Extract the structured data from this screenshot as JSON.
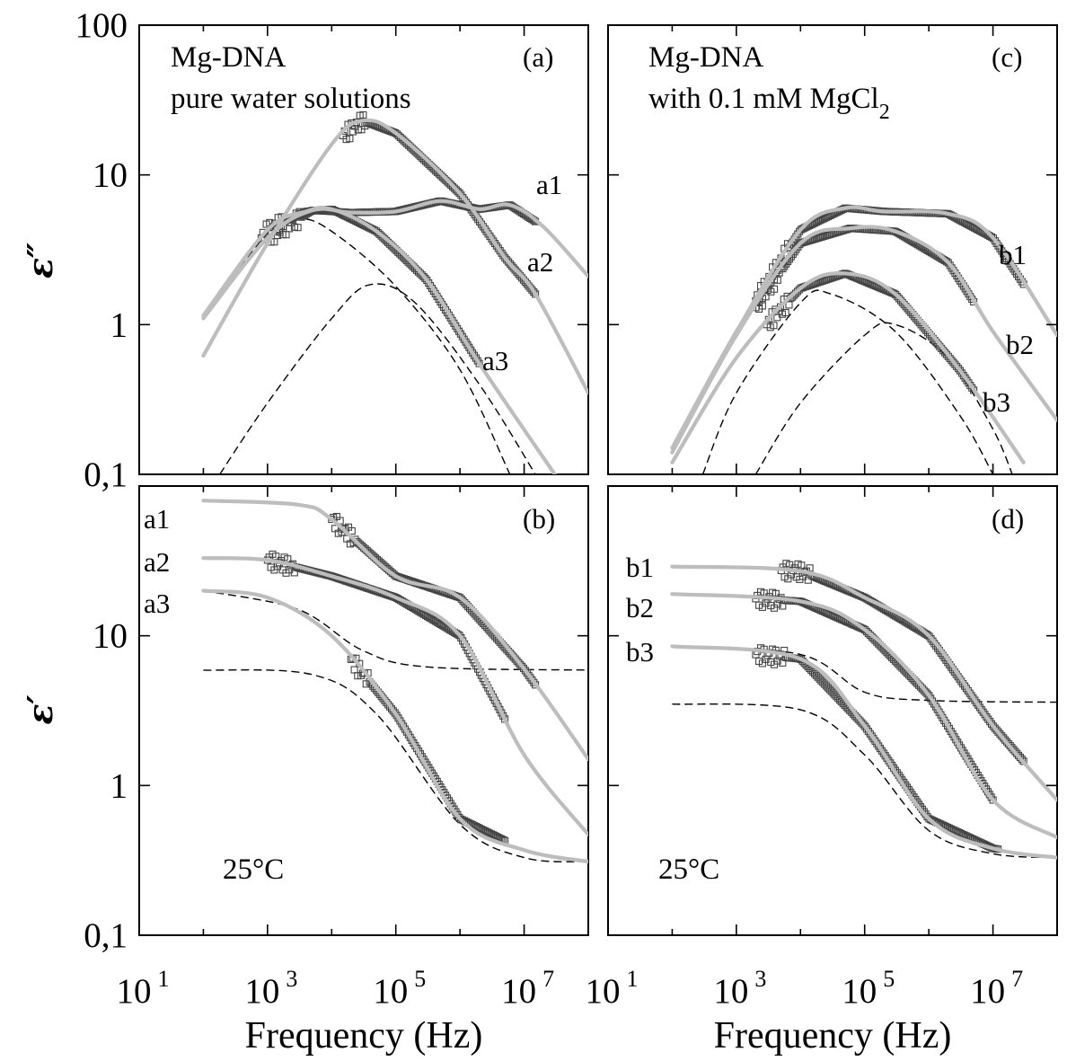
{
  "figure": {
    "x_axis_title": "Frequency (Hz)",
    "y_axis_top_title": "ε″",
    "y_axis_bottom_title": "ε′",
    "y_ticks_top": [
      {
        "value": 100,
        "label": "100"
      },
      {
        "value": 10,
        "label": "10"
      },
      {
        "value": 1,
        "label": "1"
      },
      {
        "value": 0.1,
        "label": "0,1"
      }
    ],
    "y_ticks_bottom": [
      {
        "value": 10,
        "label": "10"
      },
      {
        "value": 1,
        "label": "1"
      },
      {
        "value": 0.1,
        "label": "0,1"
      }
    ],
    "x_ticks": [
      {
        "value": 10,
        "base": "10",
        "exp": "1"
      },
      {
        "value": 1000,
        "base": "10",
        "exp": "3"
      },
      {
        "value": 100000,
        "base": "10",
        "exp": "5"
      },
      {
        "value": 10000000,
        "base": "10",
        "exp": "7"
      }
    ],
    "colors": {
      "data": "#444444",
      "fit": "#bdbdbd",
      "component": "#000000",
      "frame": "#000000"
    }
  },
  "panels": {
    "a": {
      "label": "(a)",
      "line1": "Mg-DNA",
      "line2": "pure water solutions"
    },
    "b": {
      "label": "(b)",
      "temperature": "25°C"
    },
    "c": {
      "label": "(c)",
      "line1": "Mg-DNA",
      "line2_prefix": "with 0.1 mM MgCl",
      "line2_sub": "2"
    },
    "d": {
      "label": "(d)",
      "temperature": "25°C"
    }
  },
  "curve_labels": {
    "a1": "a1",
    "a2": "a2",
    "a3": "a3",
    "b1": "b1",
    "b2": "b2",
    "b3": "b3"
  },
  "chart_data": [
    {
      "type": "scatter",
      "panel": "(a)",
      "title": "Mg-DNA pure water solutions",
      "xlabel": "Frequency (Hz)",
      "ylabel": "ε″",
      "xscale": "log",
      "yscale": "log",
      "xlim": [
        10,
        100000000
      ],
      "ylim": [
        0.1,
        100
      ],
      "series": [
        {
          "name": "a1",
          "fit": [
            [
              100,
              1.1
            ],
            [
              1000,
              3.8
            ],
            [
              5000,
              5.8
            ],
            [
              20000,
              5.6
            ],
            [
              100000,
              5.7
            ],
            [
              500000,
              6.7
            ],
            [
              2000000,
              5.9
            ],
            [
              6000000,
              6.3
            ],
            [
              20000000,
              4.5
            ],
            [
              100000000,
              2.1
            ]
          ],
          "data_range": [
            1000,
            15000000
          ]
        },
        {
          "name": "a2",
          "fit": [
            [
              100,
              0.62
            ],
            [
              1000,
              3.5
            ],
            [
              10000,
              16
            ],
            [
              30000,
              23
            ],
            [
              100000,
              19
            ],
            [
              1000000,
              7.5
            ],
            [
              5000000,
              2.8
            ],
            [
              15000000,
              1.6
            ],
            [
              100000000,
              0.35
            ]
          ],
          "data_range": [
            15000,
            15000000
          ]
        },
        {
          "name": "a3",
          "fit": [
            [
              100,
              1.15
            ],
            [
              1000,
              4.3
            ],
            [
              4000,
              5.7
            ],
            [
              10000,
              5.9
            ],
            [
              50000,
              4.2
            ],
            [
              300000,
              2.0
            ],
            [
              2000000,
              0.55
            ],
            [
              30000000,
              0.1
            ]
          ],
          "data_range": [
            800,
            2000000
          ]
        },
        {
          "name": "a3 component 1",
          "dashed": true,
          "fit": [
            [
              100,
              1.1
            ],
            [
              1000,
              4.1
            ],
            [
              3000,
              5.1
            ],
            [
              10000,
              4.2
            ],
            [
              100000,
              1.8
            ],
            [
              1000000,
              0.5
            ],
            [
              6000000,
              0.1
            ]
          ]
        },
        {
          "name": "a3 component 2",
          "dashed": true,
          "fit": [
            [
              180,
              0.1
            ],
            [
              1000,
              0.3
            ],
            [
              10000,
              1.1
            ],
            [
              40000,
              1.85
            ],
            [
              200000,
              1.4
            ],
            [
              2000000,
              0.4
            ],
            [
              15000000,
              0.1
            ]
          ]
        }
      ]
    },
    {
      "type": "scatter",
      "panel": "(b)",
      "xlabel": "Frequency (Hz)",
      "ylabel": "ε′",
      "xscale": "log",
      "yscale": "log",
      "xlim": [
        10,
        100000000
      ],
      "ylim": [
        0.1,
        100
      ],
      "series": [
        {
          "name": "a1",
          "fit": [
            [
              100,
              80
            ],
            [
              3000,
              75
            ],
            [
              10000,
              60
            ],
            [
              100000,
              25
            ],
            [
              1000000,
              18
            ],
            [
              10000000,
              6
            ],
            [
              100000000,
              1.5
            ]
          ],
          "data_range": [
            10000,
            15000000
          ]
        },
        {
          "name": "a2",
          "fit": [
            [
              100,
              33
            ],
            [
              1000,
              32
            ],
            [
              10000,
              25
            ],
            [
              100000,
              18
            ],
            [
              1000000,
              10
            ],
            [
              10000000,
              1.6
            ],
            [
              100000000,
              0.47
            ]
          ],
          "data_range": [
            1000,
            5000000
          ]
        },
        {
          "name": "a3",
          "fit": [
            [
              100,
              20
            ],
            [
              1000,
              18
            ],
            [
              10000,
              10
            ],
            [
              100000,
              3
            ],
            [
              1000000,
              0.6
            ],
            [
              10000000,
              0.37
            ],
            [
              100000000,
              0.31
            ]
          ],
          "data_range": [
            20000,
            5000000
          ]
        },
        {
          "name": "a3 component 1",
          "dashed": true,
          "fit": [
            [
              100,
              20
            ],
            [
              3000,
              15
            ],
            [
              30000,
              8
            ],
            [
              300000,
              6.2
            ],
            [
              100000000,
              5.9
            ]
          ]
        },
        {
          "name": "a3 component 2",
          "dashed": true,
          "fit": [
            [
              100,
              5.9
            ],
            [
              5000,
              5.5
            ],
            [
              50000,
              3
            ],
            [
              1000000,
              0.55
            ],
            [
              10000000,
              0.33
            ],
            [
              100000000,
              0.31
            ]
          ]
        }
      ],
      "annotations": [
        "25°C"
      ]
    },
    {
      "type": "scatter",
      "panel": "(c)",
      "title": "Mg-DNA with 0.1 mM MgCl2",
      "xlabel": "Frequency (Hz)",
      "ylabel": "ε″",
      "xscale": "log",
      "yscale": "log",
      "xlim": [
        10,
        100000000
      ],
      "ylim": [
        0.1,
        100
      ],
      "series": [
        {
          "name": "b1",
          "fit": [
            [
              100,
              0.15
            ],
            [
              1000,
              0.9
            ],
            [
              10000,
              4.3
            ],
            [
              50000,
              6.0
            ],
            [
              200000,
              5.7
            ],
            [
              2000000,
              5.5
            ],
            [
              10000000,
              3.8
            ],
            [
              100000000,
              0.85
            ]
          ],
          "data_range": [
            2000,
            30000000
          ]
        },
        {
          "name": "b2",
          "fit": [
            [
              100,
              0.14
            ],
            [
              1000,
              0.85
            ],
            [
              10000,
              3.5
            ],
            [
              60000,
              4.4
            ],
            [
              300000,
              4.2
            ],
            [
              2000000,
              2.6
            ],
            [
              10000000,
              0.9
            ],
            [
              100000000,
              0.23
            ]
          ],
          "data_range": [
            2000,
            5000000
          ]
        },
        {
          "name": "b3",
          "fit": [
            [
              100,
              0.12
            ],
            [
              1000,
              0.6
            ],
            [
              10000,
              1.75
            ],
            [
              50000,
              2.2
            ],
            [
              300000,
              1.6
            ],
            [
              3000000,
              0.5
            ],
            [
              30000000,
              0.12
            ]
          ],
          "data_range": [
            3000,
            5000000
          ]
        },
        {
          "name": "b3 component 1",
          "dashed": true,
          "fit": [
            [
              300,
              0.1
            ],
            [
              1000,
              0.35
            ],
            [
              10000,
              1.4
            ],
            [
              30000,
              1.6
            ],
            [
              300000,
              0.9
            ],
            [
              3000000,
              0.25
            ],
            [
              10000000,
              0.1
            ]
          ]
        },
        {
          "name": "b3 component 2",
          "dashed": true,
          "fit": [
            [
              2000,
              0.1
            ],
            [
              10000,
              0.3
            ],
            [
              100000,
              0.85
            ],
            [
              300000,
              1.0
            ],
            [
              2000000,
              0.6
            ],
            [
              10000000,
              0.2
            ],
            [
              20000000,
              0.1
            ]
          ]
        }
      ]
    },
    {
      "type": "scatter",
      "panel": "(d)",
      "xlabel": "Frequency (Hz)",
      "ylabel": "ε′",
      "xscale": "log",
      "yscale": "log",
      "xlim": [
        10,
        100000000
      ],
      "ylim": [
        0.1,
        100
      ],
      "series": [
        {
          "name": "b1",
          "fit": [
            [
              100,
              29
            ],
            [
              10000,
              27
            ],
            [
              100000,
              18
            ],
            [
              1000000,
              10
            ],
            [
              10000000,
              2.5
            ],
            [
              100000000,
              0.8
            ]
          ],
          "data_range": [
            5000,
            30000000
          ]
        },
        {
          "name": "b2",
          "fit": [
            [
              100,
              19
            ],
            [
              10000,
              17
            ],
            [
              100000,
              11
            ],
            [
              1000000,
              4
            ],
            [
              10000000,
              0.8
            ],
            [
              100000000,
              0.45
            ]
          ],
          "data_range": [
            2000,
            10000000
          ]
        },
        {
          "name": "b3",
          "fit": [
            [
              100,
              8.5
            ],
            [
              10000,
              7
            ],
            [
              100000,
              2.5
            ],
            [
              1000000,
              0.6
            ],
            [
              10000000,
              0.38
            ],
            [
              100000000,
              0.33
            ]
          ],
          "data_range": [
            2000,
            12000000
          ]
        },
        {
          "name": "b3 component 1",
          "dashed": true,
          "fit": [
            [
              100,
              8.5
            ],
            [
              10000,
              7.5
            ],
            [
              100000,
              4.2
            ],
            [
              1000000,
              3.7
            ],
            [
              100000000,
              3.6
            ]
          ]
        },
        {
          "name": "b3 component 2",
          "dashed": true,
          "fit": [
            [
              100,
              3.5
            ],
            [
              10000,
              3.2
            ],
            [
              100000,
              1.6
            ],
            [
              1000000,
              0.5
            ],
            [
              10000000,
              0.35
            ],
            [
              100000000,
              0.33
            ]
          ]
        }
      ],
      "annotations": [
        "25°C"
      ]
    }
  ]
}
